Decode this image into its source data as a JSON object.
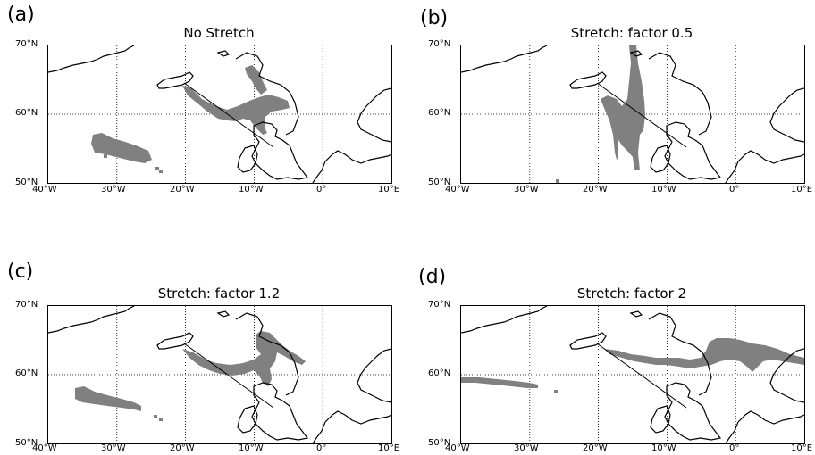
{
  "panels": [
    {
      "letter": "(a)",
      "title": "No Stretch"
    },
    {
      "letter": "(b)",
      "title": "Stretch: factor 0.5"
    },
    {
      "letter": "(c)",
      "title": "Stretch: factor 1.2"
    },
    {
      "letter": "(d)",
      "title": "Stretch: factor 2"
    }
  ],
  "axes": {
    "lat_ticks": [
      "70°N",
      "60°N",
      "50°N"
    ],
    "lon_ticks": [
      "40°W",
      "30°W",
      "20°W",
      "10°W",
      "0°",
      "10°E"
    ],
    "lon_range": [
      -40,
      10
    ],
    "lat_range": [
      50,
      70
    ],
    "gridlines": "dotted"
  },
  "colors": {
    "footprint": "#808080",
    "coast": "#000000",
    "grid": "#000000"
  }
}
